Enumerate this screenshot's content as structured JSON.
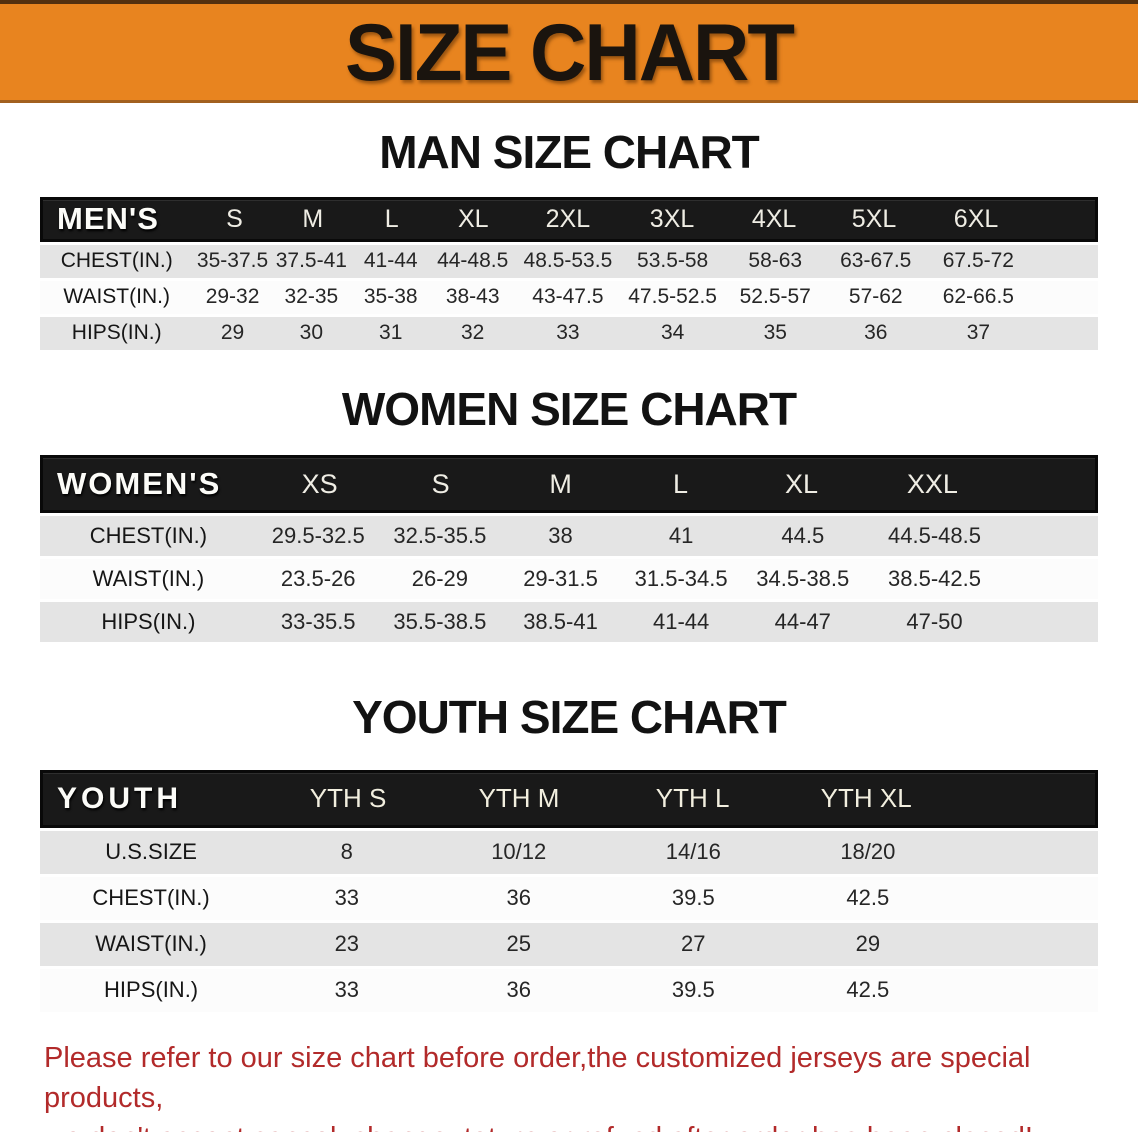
{
  "banner": {
    "title": "SIZE CHART"
  },
  "colors": {
    "banner_bg": "#E8841F",
    "banner_bottom_border": "#A2601F",
    "table_header_bg": "#191919",
    "table_header_text": "#F3F0E8",
    "row_gray": "#E4E4E4",
    "row_white": "#FCFCFC",
    "heading_text": "#121212",
    "footer_text": "#B22A2A"
  },
  "man": {
    "heading": "MAN SIZE CHART",
    "corner_label": "MEN'S",
    "sizes": [
      "S",
      "M",
      "L",
      "XL",
      "2XL",
      "3XL",
      "4XL",
      "5XL",
      "6XL"
    ],
    "rows": [
      {
        "label": "CHEST(IN.)",
        "values": [
          "35-37.5",
          "37.5-41",
          "41-44",
          "44-48.5",
          "48.5-53.5",
          "53.5-58",
          "58-63",
          "63-67.5",
          "67.5-72"
        ]
      },
      {
        "label": "WAIST(IN.)",
        "values": [
          "29-32",
          "32-35",
          "35-38",
          "38-43",
          "43-47.5",
          "47.5-52.5",
          "52.5-57",
          "57-62",
          "62-66.5"
        ]
      },
      {
        "label": "HIPS(IN.)",
        "values": [
          "29",
          "30",
          "31",
          "32",
          "33",
          "34",
          "35",
          "36",
          "37"
        ]
      }
    ]
  },
  "women": {
    "heading": "WOMEN SIZE CHART",
    "corner_label": "WOMEN'S",
    "sizes": [
      "XS",
      "S",
      "M",
      "L",
      "XL",
      "XXL"
    ],
    "rows": [
      {
        "label": "CHEST(IN.)",
        "values": [
          "29.5-32.5",
          "32.5-35.5",
          "38",
          "41",
          "44.5",
          "44.5-48.5"
        ]
      },
      {
        "label": "WAIST(IN.)",
        "values": [
          "23.5-26",
          "26-29",
          "29-31.5",
          "31.5-34.5",
          "34.5-38.5",
          "38.5-42.5"
        ]
      },
      {
        "label": "HIPS(IN.)",
        "values": [
          "33-35.5",
          "35.5-38.5",
          "38.5-41",
          "41-44",
          "44-47",
          "47-50"
        ]
      }
    ]
  },
  "youth": {
    "heading": "YOUTH SIZE CHART",
    "corner_label": "YOUTH",
    "sizes": [
      "YTH S",
      "YTH M",
      "YTH L",
      "YTH XL"
    ],
    "rows": [
      {
        "label": "U.S.SIZE",
        "values": [
          "8",
          "10/12",
          "14/16",
          "18/20"
        ]
      },
      {
        "label": "CHEST(IN.)",
        "values": [
          "33",
          "36",
          "39.5",
          "42.5"
        ]
      },
      {
        "label": "WAIST(IN.)",
        "values": [
          "23",
          "25",
          "27",
          "29"
        ]
      },
      {
        "label": "HIPS(IN.)",
        "values": [
          "33",
          "36",
          "39.5",
          "42.5"
        ]
      }
    ]
  },
  "footer": {
    "line1": "Please refer to our size chart before order,the customized jerseys are special products,",
    "line2": "we don't accept cancel, change, teturn or refund after order has been placed!"
  }
}
